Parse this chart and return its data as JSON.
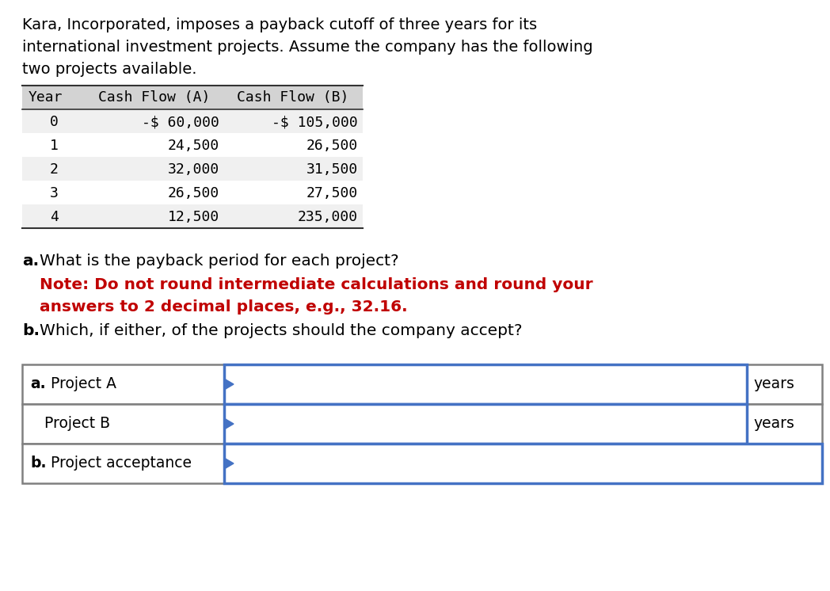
{
  "bg_color": "#ffffff",
  "intro_lines": [
    "Kara, Incorporated, imposes a payback cutoff of three years for its",
    "international investment projects. Assume the company has the following",
    "two projects available."
  ],
  "table_header": [
    "Year",
    "Cash Flow (A)",
    "Cash Flow (B)"
  ],
  "table_rows": [
    [
      "0",
      "-$ 60,000",
      "-$ 105,000"
    ],
    [
      "1",
      "24,500",
      "26,500"
    ],
    [
      "2",
      "32,000",
      "31,500"
    ],
    [
      "3",
      "26,500",
      "27,500"
    ],
    [
      "4",
      "12,500",
      "235,000"
    ]
  ],
  "table_header_bg": "#d3d3d3",
  "table_row_bg_even": "#f0f0f0",
  "table_row_bg_odd": "#ffffff",
  "note_color": "#c00000",
  "text_color": "#000000",
  "answer_box_border": "#4472c4",
  "answer_table_border": "#808080",
  "answer_rows": [
    {
      "bold": "a.",
      "normal": " Project A",
      "has_years": true
    },
    {
      "bold": "",
      "normal": "   Project B",
      "has_years": true
    },
    {
      "bold": "b.",
      "normal": " Project acceptance",
      "has_years": false
    }
  ]
}
